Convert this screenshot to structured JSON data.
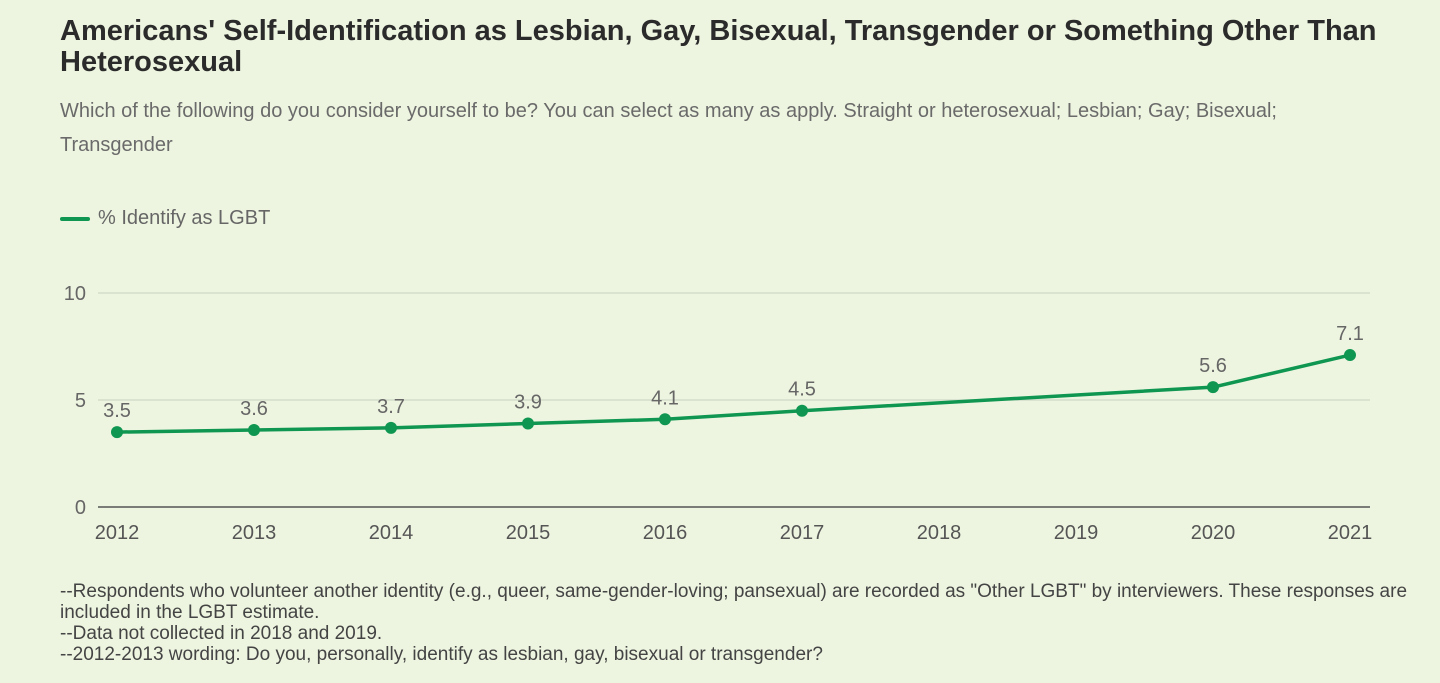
{
  "title": "Americans' Self-Identification as Lesbian, Gay, Bisexual, Transgender or Something Other Than Heterosexual",
  "subtitle": "Which of the following do you consider yourself to be? You can select as many as apply. Straight or heterosexual; Lesbian; Gay; Bisexual; Transgender",
  "notes": [
    "--Respondents who volunteer another identity (e.g., queer, same-gender-loving; pansexual) are recorded as \"Other LGBT\" by interviewers. These responses are included in the LGBT estimate.",
    "--Data not collected in 2018 and 2019.",
    "--2012-2013 wording: Do you, personally, identify as lesbian, gay, bisexual or transgender?"
  ],
  "chart_data": {
    "type": "line",
    "title": "Americans' Self-Identification as Lesbian, Gay, Bisexual, Transgender or Something Other Than Heterosexual",
    "xlabel": "",
    "ylabel": "",
    "x_ticks": [
      "2012",
      "2013",
      "2014",
      "2015",
      "2016",
      "2017",
      "2018",
      "2019",
      "2020",
      "2021"
    ],
    "y_ticks": [
      "0",
      "5",
      "10"
    ],
    "ylim": [
      0,
      10
    ],
    "xlim": [
      2012,
      2021
    ],
    "grid": true,
    "legend_position": "top-left",
    "series": [
      {
        "name": "% Identify as LGBT",
        "color": "#0f9650",
        "x": [
          2012,
          2013,
          2014,
          2015,
          2016,
          2017,
          2020,
          2021
        ],
        "values": [
          3.5,
          3.6,
          3.7,
          3.9,
          4.1,
          4.5,
          5.6,
          7.1
        ],
        "labels": [
          "3.5",
          "3.6",
          "3.7",
          "3.9",
          "4.1",
          "4.5",
          "5.6",
          "7.1"
        ]
      }
    ]
  }
}
